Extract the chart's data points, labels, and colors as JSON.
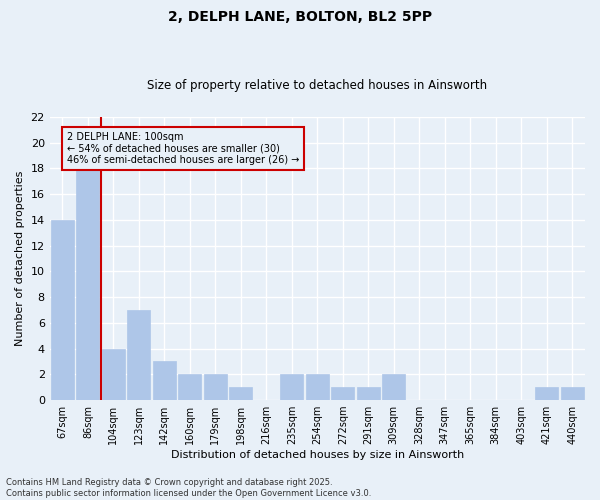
{
  "title_line1": "2, DELPH LANE, BOLTON, BL2 5PP",
  "title_line2": "Size of property relative to detached houses in Ainsworth",
  "xlabel": "Distribution of detached houses by size in Ainsworth",
  "ylabel": "Number of detached properties",
  "categories": [
    "67sqm",
    "86sqm",
    "104sqm",
    "123sqm",
    "142sqm",
    "160sqm",
    "179sqm",
    "198sqm",
    "216sqm",
    "235sqm",
    "254sqm",
    "272sqm",
    "291sqm",
    "309sqm",
    "328sqm",
    "347sqm",
    "365sqm",
    "384sqm",
    "403sqm",
    "421sqm",
    "440sqm"
  ],
  "values": [
    14,
    18,
    4,
    7,
    3,
    2,
    2,
    1,
    0,
    2,
    2,
    1,
    1,
    2,
    0,
    0,
    0,
    0,
    0,
    1,
    1
  ],
  "bar_color": "#aec6e8",
  "bar_edgecolor": "#aec6e8",
  "red_line_index": 2,
  "annotation_text": "2 DELPH LANE: 100sqm\n← 54% of detached houses are smaller (30)\n46% of semi-detached houses are larger (26) →",
  "annotation_box_edgecolor": "#cc0000",
  "ylim": [
    0,
    22
  ],
  "yticks": [
    0,
    2,
    4,
    6,
    8,
    10,
    12,
    14,
    16,
    18,
    20,
    22
  ],
  "background_color": "#e8f0f8",
  "grid_color": "#ffffff",
  "footer_line1": "Contains HM Land Registry data © Crown copyright and database right 2025.",
  "footer_line2": "Contains public sector information licensed under the Open Government Licence v3.0."
}
